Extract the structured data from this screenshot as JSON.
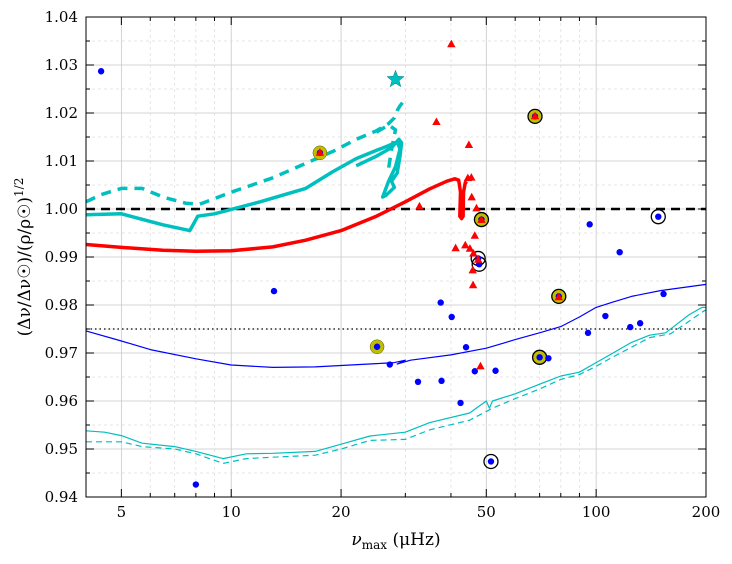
{
  "chart_data": {
    "type": "scatter",
    "title": "",
    "xlabel": "ν_max (μHz)",
    "ylabel": "(Δν/Δν☉)/(ρ/ρ☉)^1/2",
    "xscale": "log",
    "xlim": [
      4,
      200
    ],
    "ylim": [
      0.94,
      1.04
    ],
    "grid": true,
    "x_ticks": [
      5,
      10,
      20,
      50,
      100,
      200
    ],
    "x_tick_labels": [
      "5",
      "10",
      "20",
      "50",
      "100",
      "200"
    ],
    "y_ticks": [
      0.94,
      0.95,
      0.96,
      0.97,
      0.98,
      0.99,
      1.0,
      1.01,
      1.02,
      1.03,
      1.04
    ],
    "y_tick_labels": [
      "0.94",
      "0.95",
      "0.96",
      "0.97",
      "0.98",
      "0.99",
      "1.00",
      "1.01",
      "1.02",
      "1.03",
      "1.04"
    ],
    "reference_lines": [
      {
        "name": "unity",
        "y": 1.0,
        "style": "dashed",
        "color": "#000000"
      },
      {
        "name": "offset",
        "y": 0.975,
        "style": "dotted",
        "color": "#000000"
      }
    ],
    "colors": {
      "blue": "#0000ff",
      "red": "#ff0000",
      "cyan": "#00bfbf",
      "yellow": "#bfbf00",
      "black": "#000000"
    },
    "series": [
      {
        "name": "blue-dots",
        "kind": "points",
        "marker": "dot",
        "color": "#0000ff",
        "points": [
          [
            4.4,
            1.0287
          ],
          [
            8,
            0.9426
          ],
          [
            13.1,
            0.9829
          ],
          [
            25.1,
            0.9713
          ],
          [
            27.2,
            0.9676
          ],
          [
            32.5,
            0.964
          ],
          [
            37.5,
            0.9805
          ],
          [
            37.7,
            0.9642
          ],
          [
            40.2,
            0.9775
          ],
          [
            42.5,
            0.9596
          ],
          [
            44,
            0.9712
          ],
          [
            46.5,
            0.9662
          ],
          [
            47.5,
            0.9897
          ],
          [
            47.8,
            0.9885
          ],
          [
            48.5,
            0.9978
          ],
          [
            51.5,
            0.9474
          ],
          [
            53,
            0.9663
          ],
          [
            70,
            0.9691
          ],
          [
            74,
            0.9689
          ],
          [
            79,
            0.9818
          ],
          [
            95,
            0.9742
          ],
          [
            96,
            0.9968
          ],
          [
            106,
            0.9777
          ],
          [
            116,
            0.991
          ],
          [
            124,
            0.9754
          ],
          [
            132,
            0.9762
          ],
          [
            148,
            0.9984
          ],
          [
            153,
            0.9823
          ],
          [
            68,
            1.0193
          ],
          [
            17.5,
            1.0117
          ]
        ]
      },
      {
        "name": "red-triangles",
        "kind": "points",
        "marker": "triangle",
        "color": "#ff0000",
        "points": [
          [
            28.2,
            1.0268
          ],
          [
            32.8,
            1.0006
          ],
          [
            36.5,
            1.0182
          ],
          [
            40.1,
            1.0344
          ],
          [
            41.2,
            0.9919
          ],
          [
            43.8,
            0.9925
          ],
          [
            44.5,
            1.0065
          ],
          [
            44.8,
            1.0134
          ],
          [
            45.1,
            0.9918
          ],
          [
            45.5,
            1.0066
          ],
          [
            45.6,
            1.0025
          ],
          [
            45.9,
            0.9873
          ],
          [
            46,
            0.9842
          ],
          [
            46.1,
            0.9908
          ],
          [
            46.5,
            0.9945
          ],
          [
            47,
            1.0002
          ],
          [
            47.5,
            0.9895
          ],
          [
            48.2,
            0.9673
          ],
          [
            48.5,
            0.9978
          ],
          [
            68,
            1.0194
          ],
          [
            79,
            0.9817
          ],
          [
            17.5,
            1.0118
          ]
        ]
      },
      {
        "name": "yellow-circled",
        "kind": "points",
        "marker": "ring-filled",
        "color": "#bfbf00",
        "points": [
          [
            17.5,
            1.0117
          ],
          [
            25.1,
            0.9713
          ],
          [
            48.5,
            0.9978
          ],
          [
            68,
            1.0193
          ],
          [
            70,
            0.9691
          ],
          [
            79,
            0.9818
          ]
        ]
      },
      {
        "name": "black-open-circles",
        "kind": "points",
        "marker": "ring-open",
        "color": "#000000",
        "points": [
          [
            47.5,
            0.9897
          ],
          [
            47.8,
            0.9885
          ],
          [
            48.5,
            0.9978
          ],
          [
            51.5,
            0.9474
          ],
          [
            68,
            1.0193
          ],
          [
            70,
            0.9691
          ],
          [
            79,
            0.9818
          ],
          [
            148,
            0.9984
          ]
        ]
      },
      {
        "name": "cyan-star",
        "kind": "points",
        "marker": "star",
        "color": "#00bfbf",
        "points": [
          [
            28.2,
            1.027
          ]
        ]
      },
      {
        "name": "cyan-thick-solid",
        "kind": "line",
        "style": "solid",
        "width": "thick",
        "color": "#00bfbf",
        "points": [
          [
            4,
            0.9988
          ],
          [
            5,
            0.999
          ],
          [
            6.5,
            0.9967
          ],
          [
            7.7,
            0.9955
          ],
          [
            8.1,
            0.9985
          ],
          [
            9,
            0.999
          ],
          [
            12,
            1.0015
          ],
          [
            16,
            1.0043
          ],
          [
            19,
            1.0078
          ],
          [
            22,
            1.0105
          ],
          [
            25,
            1.0122
          ],
          [
            27,
            1.0132
          ],
          [
            28.5,
            1.014
          ],
          [
            29,
            1.0125
          ],
          [
            28.2,
            1.0088
          ],
          [
            27,
            1.0058
          ],
          [
            26,
            1.0025
          ],
          [
            26.5,
            1.0028
          ],
          [
            28,
            1.0045
          ],
          [
            27.5,
            1.0058
          ],
          [
            28.5,
            1.0075
          ],
          [
            29,
            1.011
          ],
          [
            29.3,
            1.0138
          ],
          [
            28.8,
            1.0145
          ],
          [
            27.5,
            1.0128
          ],
          [
            25,
            1.011
          ],
          [
            22,
            1.009
          ]
        ]
      },
      {
        "name": "cyan-thick-dashed",
        "kind": "line",
        "style": "dashed",
        "width": "thick",
        "color": "#00bfbf",
        "points": [
          [
            4,
            1.0015
          ],
          [
            4.4,
            1.003
          ],
          [
            5,
            1.0043
          ],
          [
            5.7,
            1.0043
          ],
          [
            6.5,
            1.0025
          ],
          [
            7.5,
            1.0012
          ],
          [
            8.2,
            1.001
          ],
          [
            10,
            1.0035
          ],
          [
            13,
            1.0065
          ],
          [
            16,
            1.0095
          ],
          [
            19,
            1.012
          ],
          [
            22,
            1.0145
          ],
          [
            25,
            1.0163
          ],
          [
            27,
            1.0178
          ],
          [
            28,
            1.019
          ],
          [
            28.5,
            1.0205
          ],
          [
            29,
            1.0215
          ],
          [
            29.5,
            1.0222
          ]
        ]
      },
      {
        "name": "cyan-thick-dashed-hook",
        "kind": "line",
        "style": "dashed",
        "width": "thick",
        "color": "#00bfbf",
        "points": [
          [
            25,
            1.016
          ],
          [
            27,
            1.0175
          ],
          [
            28.2,
            1.0165
          ],
          [
            27.6,
            1.013
          ],
          [
            27,
            1.0085
          ]
        ]
      },
      {
        "name": "red-thick-solid",
        "kind": "line",
        "style": "solid",
        "width": "thick",
        "color": "#ff0000",
        "points": [
          [
            4,
            0.9926
          ],
          [
            5,
            0.992
          ],
          [
            6.5,
            0.9914
          ],
          [
            8,
            0.9912
          ],
          [
            10,
            0.9913
          ],
          [
            13,
            0.9921
          ],
          [
            16,
            0.9935
          ],
          [
            20,
            0.9955
          ],
          [
            25,
            0.9985
          ],
          [
            30,
            1.0015
          ],
          [
            35,
            1.0042
          ],
          [
            39,
            1.0058
          ],
          [
            41,
            1.0063
          ],
          [
            42,
            1.006
          ],
          [
            42.5,
            1.0035
          ],
          [
            42.3,
            0.9985
          ],
          [
            42.8,
            0.998
          ],
          [
            43.2,
            0.9985
          ],
          [
            43.3,
            1.0035
          ],
          [
            43.8,
            1.0055
          ],
          [
            44.2,
            1.0052
          ]
        ]
      },
      {
        "name": "blue-thin-solid",
        "kind": "line",
        "style": "solid",
        "width": "thin",
        "color": "#0000ff",
        "points": [
          [
            4,
            0.9746
          ],
          [
            5,
            0.9725
          ],
          [
            6,
            0.9707
          ],
          [
            8,
            0.9688
          ],
          [
            10,
            0.9675
          ],
          [
            13,
            0.967
          ],
          [
            17,
            0.9671
          ],
          [
            20,
            0.9674
          ],
          [
            25,
            0.9678
          ],
          [
            28,
            0.968
          ],
          [
            30,
            0.9685
          ],
          [
            28.5,
            0.9677
          ],
          [
            31,
            0.9685
          ],
          [
            40,
            0.9696
          ],
          [
            50,
            0.971
          ],
          [
            60,
            0.9728
          ],
          [
            70,
            0.9742
          ],
          [
            80,
            0.9755
          ],
          [
            90,
            0.9775
          ],
          [
            100,
            0.9795
          ],
          [
            110,
            0.9805
          ],
          [
            125,
            0.9818
          ],
          [
            150,
            0.983
          ],
          [
            200,
            0.9843
          ]
        ]
      },
      {
        "name": "cyan-thin-solid",
        "kind": "line",
        "style": "solid",
        "width": "thin",
        "color": "#00bfbf",
        "points": [
          [
            4,
            0.9538
          ],
          [
            4.5,
            0.9535
          ],
          [
            5,
            0.9528
          ],
          [
            5.7,
            0.9512
          ],
          [
            7,
            0.9505
          ],
          [
            8,
            0.9495
          ],
          [
            9.5,
            0.948
          ],
          [
            11,
            0.949
          ],
          [
            13,
            0.9491
          ],
          [
            17,
            0.9495
          ],
          [
            20,
            0.951
          ],
          [
            24,
            0.9527
          ],
          [
            30,
            0.9535
          ],
          [
            35,
            0.9555
          ],
          [
            45,
            0.9575
          ],
          [
            50,
            0.96
          ],
          [
            51,
            0.9585
          ],
          [
            52,
            0.96
          ],
          [
            60,
            0.9615
          ],
          [
            70,
            0.9635
          ],
          [
            80,
            0.9652
          ],
          [
            90,
            0.966
          ],
          [
            100,
            0.968
          ],
          [
            110,
            0.9698
          ],
          [
            125,
            0.9722
          ],
          [
            140,
            0.9737
          ],
          [
            155,
            0.9742
          ],
          [
            165,
            0.9758
          ],
          [
            180,
            0.978
          ],
          [
            195,
            0.9795
          ],
          [
            200,
            0.9795
          ]
        ]
      },
      {
        "name": "cyan-thin-dashed",
        "kind": "line",
        "style": "dashed",
        "width": "thin",
        "color": "#00bfbf",
        "points": [
          [
            4,
            0.9515
          ],
          [
            5,
            0.9515
          ],
          [
            5.7,
            0.9505
          ],
          [
            7,
            0.95
          ],
          [
            8,
            0.949
          ],
          [
            9.5,
            0.947
          ],
          [
            11,
            0.948
          ],
          [
            13,
            0.9483
          ],
          [
            17,
            0.9487
          ],
          [
            20,
            0.95
          ],
          [
            24,
            0.9518
          ],
          [
            30,
            0.952
          ],
          [
            35,
            0.954
          ],
          [
            45,
            0.956
          ],
          [
            52,
            0.9585
          ],
          [
            60,
            0.9605
          ],
          [
            70,
            0.9625
          ],
          [
            80,
            0.9645
          ],
          [
            90,
            0.9655
          ],
          [
            100,
            0.9672
          ],
          [
            110,
            0.969
          ],
          [
            125,
            0.9712
          ],
          [
            140,
            0.9732
          ],
          [
            160,
            0.974
          ],
          [
            175,
            0.976
          ],
          [
            195,
            0.9785
          ],
          [
            200,
            0.979
          ]
        ]
      }
    ]
  }
}
